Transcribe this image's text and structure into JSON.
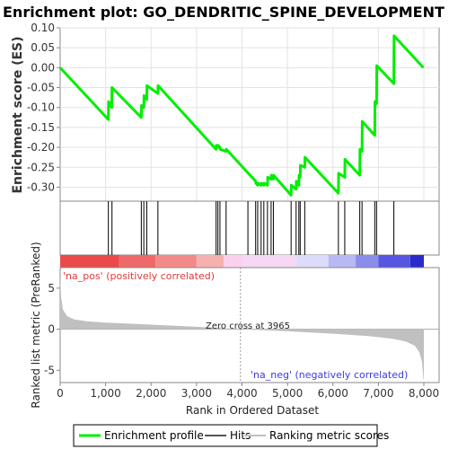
{
  "title": "Enrichment plot: GO_DENDRITIC_SPINE_DEVELOPMENT",
  "colors": {
    "enrichment_line": "#00ee00",
    "hits": "#000000",
    "metric_fill": "#c0c0c0",
    "pos_label": "#e03a3a",
    "neg_label": "#3a3ae0"
  },
  "chart_data": [
    {
      "type": "line",
      "name": "enrichment-score-panel",
      "ylabel": "Enrichment score (ES)",
      "ylim": [
        -0.335,
        0.1
      ],
      "yticks": [
        0.1,
        0.05,
        0.0,
        -0.05,
        -0.1,
        -0.15,
        -0.2,
        -0.25,
        -0.3
      ],
      "ytick_labels": [
        "0.10",
        "0.05",
        "0.00",
        "-0.05",
        "-0.10",
        "-0.15",
        "-0.20",
        "-0.25",
        "-0.30"
      ],
      "xlim": [
        0,
        8000
      ],
      "grid": true,
      "series": [
        {
          "name": "Enrichment profile",
          "x": [
            0,
            1060,
            1065,
            1135,
            1140,
            1785,
            1790,
            1840,
            1845,
            1905,
            1910,
            2150,
            2155,
            3430,
            3435,
            3470,
            3475,
            3515,
            3520,
            3650,
            3655,
            4300,
            4305,
            4345,
            4350,
            4420,
            4425,
            4480,
            4485,
            4560,
            4565,
            4640,
            4645,
            4690,
            4695,
            5080,
            5085,
            5190,
            5195,
            5250,
            5255,
            5280,
            5285,
            5380,
            5385,
            6120,
            6125,
            6260,
            6265,
            6590,
            6595,
            6640,
            6645,
            6920,
            6925,
            6960,
            6965,
            7340,
            7345,
            7990
          ],
          "y": [
            0.0,
            -0.13,
            -0.085,
            -0.1,
            -0.05,
            -0.125,
            -0.095,
            -0.1,
            -0.07,
            -0.08,
            -0.045,
            -0.065,
            -0.045,
            -0.205,
            -0.195,
            -0.2,
            -0.195,
            -0.2,
            -0.205,
            -0.21,
            -0.205,
            -0.285,
            -0.29,
            -0.295,
            -0.29,
            -0.295,
            -0.29,
            -0.295,
            -0.29,
            -0.295,
            -0.275,
            -0.28,
            -0.27,
            -0.28,
            -0.27,
            -0.32,
            -0.295,
            -0.305,
            -0.285,
            -0.295,
            -0.27,
            -0.275,
            -0.245,
            -0.25,
            -0.225,
            -0.315,
            -0.265,
            -0.275,
            -0.23,
            -0.27,
            -0.205,
            -0.21,
            -0.135,
            -0.17,
            -0.085,
            -0.09,
            0.005,
            -0.04,
            0.08,
            0.0
          ]
        }
      ]
    },
    {
      "type": "scatter",
      "name": "hits-panel",
      "series": [
        {
          "name": "Hits",
          "x": [
            1060,
            1140,
            1785,
            1840,
            1905,
            2150,
            3430,
            3470,
            3515,
            3650,
            4130,
            4300,
            4345,
            4420,
            4480,
            4560,
            4640,
            4690,
            5080,
            5190,
            5250,
            5280,
            5380,
            6120,
            6260,
            6590,
            6640,
            6920,
            6960,
            7340
          ]
        }
      ]
    },
    {
      "type": "heatmap",
      "name": "ranked-list-colorbar",
      "colors": [
        "#ea4a4a",
        "#ee6a6a",
        "#f28a8a",
        "#f6b0b0",
        "#fbd0ef",
        "#f4d8f4",
        "#dcdcfa",
        "#b8b8f4",
        "#8c8cea",
        "#5656e0",
        "#2a2acc"
      ],
      "boundaries": [
        0,
        1300,
        1300,
        2100,
        2100,
        3000,
        3000,
        3600,
        3600,
        4000,
        4000,
        5200,
        5200,
        5900,
        5900,
        6500,
        6500,
        7000,
        7000,
        7700,
        7700,
        8000
      ]
    },
    {
      "type": "area",
      "name": "ranked-metric-panel",
      "ylabel": "Ranked list metric (PreRanked)",
      "xlabel": "Rank in Ordered Dataset",
      "xlim": [
        0,
        8000
      ],
      "xticks": [
        0,
        1000,
        2000,
        3000,
        4000,
        5000,
        6000,
        7000,
        8000
      ],
      "xtick_labels": [
        "0",
        "1,000",
        "2,000",
        "3,000",
        "4,000",
        "5,000",
        "6,000",
        "7,000",
        "8,000"
      ],
      "ylim": [
        -6.5,
        7.5
      ],
      "yticks": [
        5,
        0,
        -5
      ],
      "ytick_labels": [
        "5",
        "0",
        "-5"
      ],
      "series": [
        {
          "name": "Ranking metric scores",
          "x": [
            0,
            20,
            60,
            150,
            300,
            600,
            1000,
            2000,
            3000,
            3965,
            5000,
            6000,
            6800,
            7300,
            7600,
            7800,
            7900,
            7960,
            7990,
            8000
          ],
          "y": [
            6.5,
            4.0,
            2.4,
            1.6,
            1.2,
            0.95,
            0.8,
            0.55,
            0.3,
            0.0,
            -0.25,
            -0.55,
            -0.85,
            -1.15,
            -1.5,
            -2.0,
            -2.8,
            -4.0,
            -6.0,
            -6.2
          ]
        }
      ],
      "annotations": {
        "zero_cross": "Zero cross at 3965",
        "zero_cross_rank": 3965,
        "pos_label": "'na_pos' (positively correlated)",
        "neg_label": "'na_neg' (negatively correlated)"
      }
    }
  ],
  "legend": {
    "items": [
      {
        "label": "Enrichment profile",
        "color": "#00ee00",
        "style": "thick-line"
      },
      {
        "label": "Hits",
        "color": "#555555",
        "style": "line"
      },
      {
        "label": "Ranking metric scores",
        "color": "#c0c0c0",
        "style": "line"
      }
    ]
  }
}
